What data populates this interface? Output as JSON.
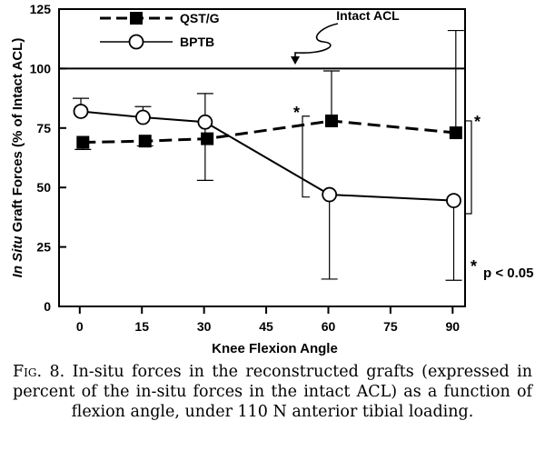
{
  "chart_data": {
    "type": "line",
    "ylabel_italic": "In Situ",
    "ylabel": "Graft Forces (% of Intact ACL)",
    "xlabel": "Knee Flexion Angle",
    "xlim": [
      -5,
      93
    ],
    "ylim": [
      0,
      125
    ],
    "xticks": [
      0,
      15,
      30,
      45,
      60,
      75,
      90
    ],
    "yticks": [
      0,
      25,
      50,
      75,
      100,
      125
    ],
    "x": [
      0,
      15,
      30,
      60,
      90
    ],
    "series": [
      {
        "name": "QST/G",
        "marker": "filled-square",
        "line_style": "dashed",
        "x": [
          0,
          15,
          30,
          60,
          90
        ],
        "values": [
          69,
          69.5,
          70.5,
          78,
          73
        ],
        "error_upper": [
          null,
          null,
          null,
          99,
          116
        ],
        "error_lower": [
          66,
          67.5,
          null,
          null,
          null
        ]
      },
      {
        "name": "BPTB",
        "marker": "open-circle",
        "line_style": "solid",
        "x": [
          0,
          15,
          30,
          60,
          90
        ],
        "values": [
          82,
          79.5,
          77.5,
          47,
          44.5
        ],
        "error_upper": [
          87.5,
          84,
          89.5,
          null,
          null
        ],
        "error_lower": [
          null,
          null,
          53,
          11.5,
          11
        ]
      }
    ],
    "reference_line": {
      "y": 100,
      "label": "Intact ACL"
    },
    "significance_marker": "*",
    "significance_at": [
      60,
      90
    ],
    "annotation": "p < 0.05",
    "legend_position": "top-left"
  },
  "caption": {
    "label": "Fig. 8.",
    "text": "In-situ forces in the reconstructed grafts (expressed in percent of the in-situ forces in the intact ACL) as a function of flexion angle, under 110 N anterior tibial loading."
  }
}
